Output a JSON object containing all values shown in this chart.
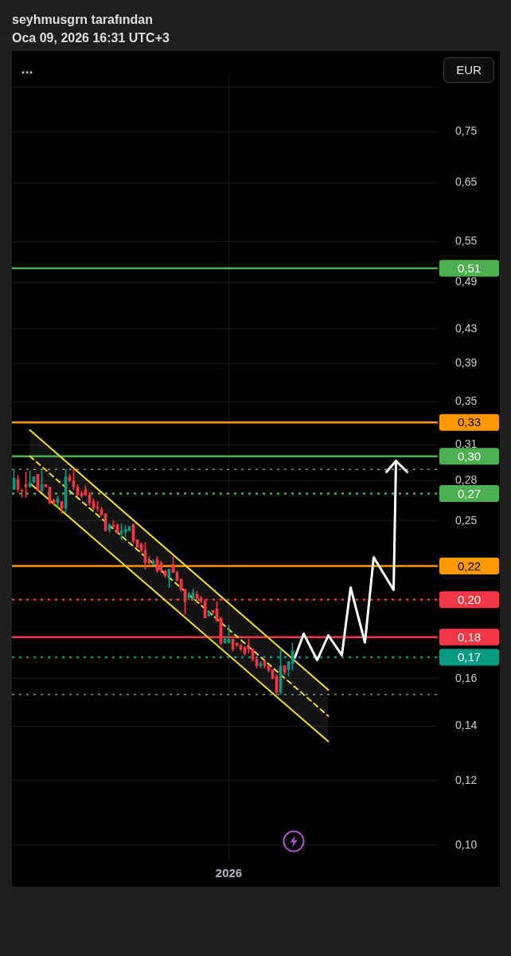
{
  "chart_data": {
    "type": "candlestick",
    "title": "seyhmusgrn tarafından",
    "subtitle": "Oca 09, 2026 16:31 UTC+3",
    "ylabel": "EUR",
    "categories": [
      null,
      null,
      null,
      null,
      null,
      null,
      null,
      null,
      null,
      null,
      null,
      null,
      null,
      null,
      null,
      null,
      null,
      null,
      null,
      null,
      null,
      null,
      null,
      null,
      null,
      null,
      null,
      null,
      null,
      null,
      null,
      null,
      null,
      null,
      null,
      null,
      null,
      null,
      null,
      null,
      null,
      null,
      null,
      null,
      null,
      null,
      null,
      null,
      null,
      null,
      null,
      null,
      null,
      null,
      "2026",
      null,
      null,
      null,
      null,
      null,
      null,
      null,
      null,
      null,
      null,
      null,
      null,
      null,
      null,
      null,
      null,
      null,
      null,
      null,
      null,
      null,
      null,
      null,
      null,
      null,
      null,
      null,
      null,
      null,
      null,
      null,
      null,
      null,
      null,
      null,
      null,
      null,
      null,
      null,
      null,
      null,
      null,
      null,
      null,
      null,
      null,
      null,
      null,
      null,
      null,
      null,
      null
    ],
    "ohlc": [
      [
        0.273,
        0.289,
        0.273,
        0.282
      ],
      [
        0.281,
        0.284,
        0.271,
        0.273
      ],
      [
        0.273,
        0.273,
        0.267,
        0.272
      ],
      [
        0.277,
        0.287,
        0.267,
        0.275
      ],
      [
        0.275,
        0.288,
        0.275,
        0.278
      ],
      [
        0.279,
        0.283,
        0.278,
        0.283
      ],
      [
        0.285,
        0.285,
        0.272,
        0.272
      ],
      [
        0.272,
        0.288,
        0.272,
        0.277
      ],
      [
        0.277,
        0.277,
        0.275,
        0.275
      ],
      [
        0.275,
        0.275,
        0.262,
        0.263
      ],
      [
        0.265,
        0.266,
        0.261,
        0.263
      ],
      [
        0.263,
        0.268,
        0.26,
        0.266
      ],
      [
        0.264,
        0.264,
        0.255,
        0.259
      ],
      [
        0.259,
        0.289,
        0.256,
        0.283
      ],
      [
        0.283,
        0.285,
        0.279,
        0.28
      ],
      [
        0.28,
        0.289,
        0.273,
        0.275
      ],
      [
        0.275,
        0.277,
        0.268,
        0.269
      ],
      [
        0.27,
        0.272,
        0.267,
        0.268
      ],
      [
        0.273,
        0.276,
        0.268,
        0.269
      ],
      [
        0.269,
        0.271,
        0.261,
        0.263
      ],
      [
        0.264,
        0.266,
        0.258,
        0.259
      ],
      [
        0.26,
        0.264,
        0.257,
        0.259
      ],
      [
        0.258,
        0.26,
        0.254,
        0.254
      ],
      [
        0.255,
        0.255,
        0.243,
        0.243
      ],
      [
        0.244,
        0.248,
        0.242,
        0.247
      ],
      [
        0.247,
        0.25,
        0.245,
        0.246
      ],
      [
        0.247,
        0.248,
        0.241,
        0.242
      ],
      [
        0.241,
        0.248,
        0.237,
        0.243
      ],
      [
        0.242,
        0.247,
        0.239,
        0.244
      ],
      [
        0.243,
        0.246,
        0.243,
        0.246
      ],
      [
        0.247,
        0.248,
        0.235,
        0.236
      ],
      [
        0.237,
        0.237,
        0.232,
        0.232
      ],
      [
        0.234,
        0.235,
        0.229,
        0.23
      ],
      [
        0.23,
        0.235,
        0.218,
        0.222
      ],
      [
        0.223,
        0.226,
        0.221,
        0.222
      ],
      [
        0.221,
        0.224,
        0.221,
        0.223
      ],
      [
        0.224,
        0.226,
        0.216,
        0.217
      ],
      [
        0.222,
        0.223,
        0.216,
        0.217
      ],
      [
        0.217,
        0.217,
        0.213,
        0.214
      ],
      [
        0.214,
        0.218,
        0.207,
        0.218
      ],
      [
        0.221,
        0.226,
        0.216,
        0.216
      ],
      [
        0.216,
        0.217,
        0.211,
        0.211
      ],
      [
        0.212,
        0.212,
        0.205,
        0.206
      ],
      [
        0.206,
        0.206,
        0.192,
        0.199
      ],
      [
        0.201,
        0.204,
        0.2,
        0.203
      ],
      [
        0.2,
        0.206,
        0.2,
        0.204
      ],
      [
        0.203,
        0.205,
        0.199,
        0.201
      ],
      [
        0.201,
        0.202,
        0.198,
        0.199
      ],
      [
        0.199,
        0.2,
        0.19,
        0.19
      ],
      [
        0.191,
        0.194,
        0.191,
        0.193
      ],
      [
        0.194,
        0.194,
        0.192,
        0.193
      ],
      [
        0.195,
        0.199,
        0.188,
        0.189
      ],
      [
        0.19,
        0.19,
        0.176,
        0.177
      ],
      [
        0.177,
        0.18,
        0.177,
        0.179
      ],
      [
        0.177,
        0.186,
        0.177,
        0.179
      ],
      [
        0.179,
        0.179,
        0.173,
        0.174
      ],
      [
        0.177,
        0.177,
        0.175,
        0.176
      ],
      [
        0.176,
        0.176,
        0.173,
        0.174
      ],
      [
        0.175,
        0.175,
        0.171,
        0.172
      ],
      [
        0.175,
        0.179,
        0.172,
        0.174
      ],
      [
        0.174,
        0.174,
        0.168,
        0.169
      ],
      [
        0.169,
        0.17,
        0.165,
        0.166
      ],
      [
        0.166,
        0.168,
        0.165,
        0.167
      ],
      [
        0.168,
        0.169,
        0.165,
        0.166
      ],
      [
        0.166,
        0.166,
        0.163,
        0.164
      ],
      [
        0.164,
        0.164,
        0.16,
        0.16
      ],
      [
        0.161,
        0.162,
        0.153,
        0.154
      ],
      [
        0.154,
        0.174,
        0.153,
        0.166
      ],
      [
        0.166,
        0.166,
        0.162,
        0.163
      ],
      [
        0.164,
        0.168,
        0.161,
        0.168
      ],
      [
        0.167,
        0.177,
        0.164,
        0.173
      ],
      null,
      null,
      null,
      null,
      null,
      null,
      null,
      null,
      null,
      null,
      null,
      null,
      null,
      null,
      null,
      null,
      null,
      null,
      null,
      null,
      null,
      null,
      null,
      null,
      null,
      null,
      null,
      null,
      null,
      null,
      null,
      null,
      null,
      null,
      null,
      null
    ],
    "colors": [
      "#089981",
      "#f23645",
      "#f23645",
      "#f23645",
      "#089981",
      "#089981",
      "#f23645",
      "#089981",
      "#f23645",
      "#f23645",
      "#f23645",
      "#089981",
      "#f23645",
      "#089981",
      "#f23645",
      "#f23645",
      "#f23645",
      "#f23645",
      "#f23645",
      "#f23645",
      "#f23645",
      "#f23645",
      "#f23645",
      "#f23645",
      "#089981",
      "#f23645",
      "#f23645",
      "#089981",
      "#089981",
      "#089981",
      "#f23645",
      "#f23645",
      "#f23645",
      "#f23645",
      "#f23645",
      "#089981",
      "#f23645",
      "#f23645",
      "#f23645",
      "#089981",
      "#f23645",
      "#f23645",
      "#f23645",
      "#f23645",
      "#089981",
      "#089981",
      "#f23645",
      "#f23645",
      "#f23645",
      "#089981",
      "#f23645",
      "#f23645",
      "#f23645",
      "#089981",
      "#089981",
      "#f23645",
      "#f23645",
      "#f23645",
      "#f23645",
      "#f23645",
      "#f23645",
      "#f23645",
      "#089981",
      "#f23645",
      "#f23645",
      "#f23645",
      "#f23645",
      "#089981",
      "#f23645",
      "#089981",
      "#089981",
      null,
      null,
      null,
      null,
      null,
      null,
      null,
      null,
      null,
      null,
      null,
      null,
      null,
      null,
      null,
      null,
      null,
      null,
      null,
      null,
      null,
      null,
      null,
      null,
      null,
      null,
      null,
      null,
      null,
      null,
      null,
      null,
      null,
      null,
      null,
      null
    ],
    "series": [
      {
        "type": "line",
        "color": "#f5e11b",
        "line_style": "solid",
        "values": [
          null,
          null,
          null,
          null,
          0.323,
          null,
          null,
          null,
          null,
          null,
          null,
          null,
          null,
          null,
          null,
          null,
          null,
          null,
          null,
          null,
          null,
          null,
          null,
          null,
          null,
          null,
          null,
          null,
          null,
          null,
          null,
          null,
          null,
          null,
          null,
          null,
          null,
          null,
          null,
          null,
          null,
          null,
          null,
          null,
          null,
          null,
          null,
          null,
          null,
          null,
          null,
          null,
          null,
          null,
          null,
          null,
          null,
          null,
          null,
          null,
          null,
          null,
          null,
          null,
          null,
          null,
          null,
          null,
          null,
          null,
          null,
          null,
          null,
          null,
          null,
          null,
          null,
          null,
          null,
          0.155,
          null,
          null,
          null,
          null,
          null,
          null,
          null,
          null,
          null,
          null,
          null,
          null,
          null,
          null,
          null,
          null,
          null,
          null,
          null,
          null,
          null,
          null,
          null,
          null,
          null,
          null,
          null
        ]
      },
      {
        "type": "line",
        "color": "#f5e11b",
        "line_style": "dashed",
        "values": [
          null,
          null,
          null,
          null,
          0.3,
          null,
          null,
          null,
          null,
          null,
          null,
          null,
          null,
          null,
          null,
          null,
          null,
          null,
          null,
          null,
          null,
          null,
          null,
          null,
          null,
          null,
          null,
          null,
          null,
          null,
          null,
          null,
          null,
          null,
          null,
          null,
          null,
          null,
          null,
          null,
          null,
          null,
          null,
          null,
          null,
          null,
          null,
          null,
          null,
          null,
          null,
          null,
          null,
          null,
          null,
          null,
          null,
          null,
          null,
          null,
          null,
          null,
          null,
          null,
          null,
          null,
          null,
          null,
          null,
          null,
          null,
          null,
          null,
          null,
          null,
          null,
          null,
          null,
          null,
          0.144,
          null,
          null,
          null,
          null,
          null,
          null,
          null,
          null,
          null,
          null,
          null,
          null,
          null,
          null,
          null,
          null,
          null,
          null,
          null,
          null,
          null,
          null,
          null,
          null,
          null,
          null,
          null
        ],
        "lower": [
          null,
          null,
          null,
          null,
          0.278,
          null,
          null,
          null,
          null,
          null,
          null,
          null,
          null,
          null,
          null,
          null,
          null,
          null,
          null,
          null,
          null,
          null,
          null,
          null,
          null,
          null,
          null,
          null,
          null,
          null,
          null,
          null,
          null,
          null,
          null,
          null,
          null,
          null,
          null,
          null,
          null,
          null,
          null,
          null,
          null,
          null,
          null,
          null,
          null,
          null,
          null,
          null,
          null,
          null,
          null,
          null,
          null,
          null,
          null,
          null,
          null,
          null,
          null,
          null,
          null,
          null,
          null,
          null,
          null,
          null,
          null,
          null,
          null,
          null,
          null,
          null,
          null,
          null,
          null,
          0.134,
          null,
          null,
          null,
          null,
          null,
          null,
          null,
          null,
          null,
          null,
          null,
          null,
          null,
          null,
          null,
          null,
          null,
          null,
          null,
          null,
          null,
          null,
          null,
          null,
          null,
          null,
          null
        ],
        "upper": [
          null,
          null,
          null,
          null,
          0.323,
          null,
          null,
          null,
          null,
          null,
          null,
          null,
          null,
          null,
          null,
          null,
          null,
          null,
          null,
          null,
          null,
          null,
          null,
          null,
          null,
          null,
          null,
          null,
          null,
          null,
          null,
          null,
          null,
          null,
          null,
          null,
          null,
          null,
          null,
          null,
          null,
          null,
          null,
          null,
          null,
          null,
          null,
          null,
          null,
          null,
          null,
          null,
          null,
          null,
          null,
          null,
          null,
          null,
          null,
          null,
          null,
          null,
          null,
          null,
          null,
          null,
          null,
          null,
          null,
          null,
          null,
          null,
          null,
          null,
          null,
          null,
          null,
          null,
          null,
          0.155,
          null,
          null,
          null,
          null,
          null,
          null,
          null,
          null,
          null,
          null,
          null,
          null,
          null,
          null,
          null,
          null,
          null,
          null,
          null,
          null,
          null,
          null,
          null,
          null,
          null,
          null,
          null
        ]
      },
      {
        "type": "line",
        "color": "#f5e11b",
        "line_style": "solid",
        "values": [
          null,
          null,
          null,
          null,
          0.278,
          null,
          null,
          null,
          null,
          null,
          null,
          null,
          null,
          null,
          null,
          null,
          null,
          null,
          null,
          null,
          null,
          null,
          null,
          null,
          null,
          null,
          null,
          null,
          null,
          null,
          null,
          null,
          null,
          null,
          null,
          null,
          null,
          null,
          null,
          null,
          null,
          null,
          null,
          null,
          null,
          null,
          null,
          null,
          null,
          null,
          null,
          null,
          null,
          null,
          null,
          null,
          null,
          null,
          null,
          null,
          null,
          null,
          null,
          null,
          null,
          null,
          null,
          null,
          null,
          null,
          null,
          null,
          null,
          null,
          null,
          null,
          null,
          null,
          null,
          0.134,
          null,
          null,
          null,
          null,
          null,
          null,
          null,
          null,
          null,
          null,
          null,
          null,
          null,
          null,
          null,
          null,
          null,
          null,
          null,
          null,
          null,
          null,
          null,
          null,
          null,
          null,
          null
        ]
      }
    ],
    "log": true,
    "ylim": [
      0.096,
      0.88
    ],
    "yticks": [
      {
        "value": 0.1,
        "label": "0,10"
      },
      {
        "value": 0.12,
        "label": "0,12"
      },
      {
        "value": 0.14,
        "label": "0,14"
      },
      {
        "value": 0.16,
        "label": "0,16"
      },
      {
        "value": 0.18,
        "label": null
      },
      {
        "value": 0.2,
        "label": null
      },
      {
        "value": 0.22,
        "label": null
      },
      {
        "value": 0.25,
        "label": "0,25"
      },
      {
        "value": 0.28,
        "label": "0,28"
      },
      {
        "value": 0.31,
        "label": "0,31"
      },
      {
        "value": 0.35,
        "label": "0,35"
      },
      {
        "value": 0.39,
        "label": "0,39"
      },
      {
        "value": 0.43,
        "label": "0,43"
      },
      {
        "value": 0.49,
        "label": "0,49"
      },
      {
        "value": 0.55,
        "label": "0,55"
      },
      {
        "value": 0.65,
        "label": "0,65"
      },
      {
        "value": 0.75,
        "label": "0,75"
      },
      {
        "value": 0.85,
        "label": null
      }
    ],
    "ref_lines": [
      {
        "axis": "y",
        "value": 0.51,
        "label": "0,51",
        "color": "#4caf50",
        "line_style": "solid"
      },
      {
        "axis": "y",
        "value": 0.33,
        "label": "0,33",
        "color": "#ff9800",
        "line_style": "solid"
      },
      {
        "axis": "y",
        "value": 0.3,
        "label": "0,30",
        "color": "#4caf50",
        "line_style": "solid"
      },
      {
        "axis": "y",
        "value": 0.289,
        "color": "#8c8c8c",
        "line_style": "dotted"
      },
      {
        "axis": "y",
        "value": 0.27,
        "label": "0,27",
        "color": "#4caf50",
        "line_style": "dotted"
      },
      {
        "axis": "y",
        "value": 0.22,
        "label": "0,22",
        "color": "#ff9800",
        "line_style": "solid"
      },
      {
        "axis": "y",
        "value": 0.2,
        "label": "0,20",
        "color": "#f23645",
        "line_style": "dotted"
      },
      {
        "axis": "y",
        "value": 0.18,
        "label": "0,18",
        "color": "#f23645",
        "line_style": "solid"
      },
      {
        "axis": "y",
        "value": 0.17,
        "label": "0,17",
        "color": "#089981",
        "line_style": "dotted"
      },
      {
        "axis": "y",
        "value": 0.153,
        "color": "#8c8c8c",
        "line_style": "dotted"
      }
    ],
    "grid": true,
    "marker": "none"
  }
}
